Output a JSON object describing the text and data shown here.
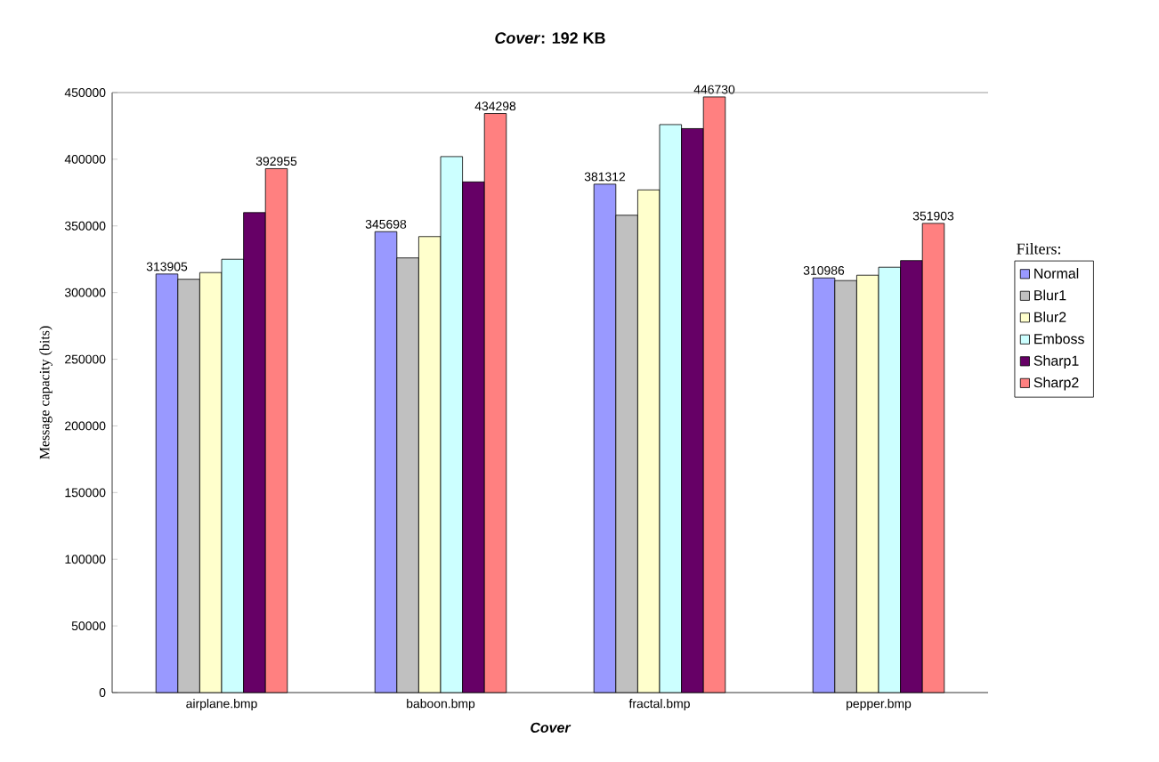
{
  "chart_data": {
    "type": "bar",
    "title": "*Cover*: 192 KB",
    "xlabel": "Cover",
    "ylabel": "Message capacity (bits)",
    "legend_title": "Filters:",
    "legend": "right",
    "grid": false,
    "categories": [
      "airplane.bmp",
      "baboon.bmp",
      "fractal.bmp",
      "pepper.bmp"
    ],
    "ylim": [
      0,
      450000
    ],
    "yticks": [
      0,
      50000,
      100000,
      150000,
      200000,
      250000,
      300000,
      350000,
      400000,
      450000
    ],
    "series": [
      {
        "name": "Normal",
        "color": "#9999ff",
        "values": [
          313905,
          345698,
          381312,
          310986
        ],
        "value_labels": [
          "313905",
          "345698",
          "381312",
          "310986"
        ]
      },
      {
        "name": "Blur1",
        "color": "#c0c0c0",
        "values": [
          310000,
          326000,
          358000,
          309000
        ]
      },
      {
        "name": "Blur2",
        "color": "#ffffcc",
        "values": [
          315000,
          342000,
          377000,
          313000
        ]
      },
      {
        "name": "Emboss",
        "color": "#ccffff",
        "values": [
          325000,
          402000,
          426000,
          319000
        ]
      },
      {
        "name": "Sharp1",
        "color": "#660066",
        "values": [
          360000,
          383000,
          423000,
          324000
        ]
      },
      {
        "name": "Sharp2",
        "color": "#ff8080",
        "values": [
          392955,
          434298,
          446730,
          351903
        ],
        "value_labels": [
          "392955",
          "434298",
          "446730",
          "351903"
        ]
      }
    ]
  }
}
